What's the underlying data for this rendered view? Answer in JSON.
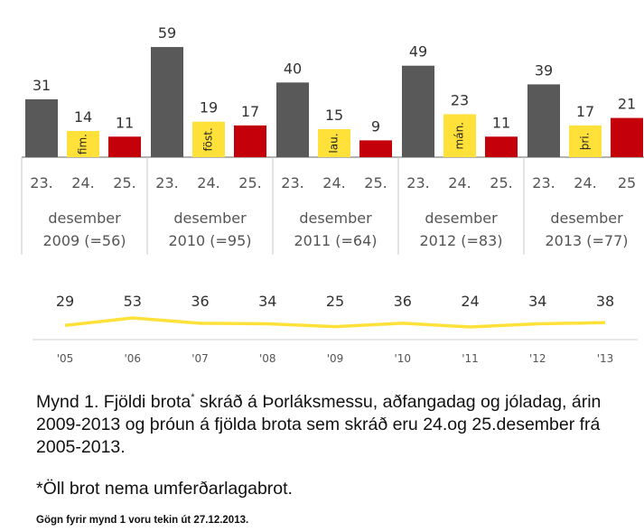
{
  "chart_data": [
    {
      "type": "bar",
      "groups": [
        {
          "label_line1": "desember",
          "label_line2": "2009 (=56)",
          "bars": [
            {
              "day": "23.",
              "value": 31,
              "weekday": ""
            },
            {
              "day": "24.",
              "value": 14,
              "weekday": "fim."
            },
            {
              "day": "25.",
              "value": 11,
              "weekday": ""
            }
          ]
        },
        {
          "label_line1": "desember",
          "label_line2": "2010 (=95)",
          "bars": [
            {
              "day": "23.",
              "value": 59,
              "weekday": ""
            },
            {
              "day": "24.",
              "value": 19,
              "weekday": "föst."
            },
            {
              "day": "25.",
              "value": 17,
              "weekday": ""
            }
          ]
        },
        {
          "label_line1": "desember",
          "label_line2": "2011 (=64)",
          "bars": [
            {
              "day": "23.",
              "value": 40,
              "weekday": ""
            },
            {
              "day": "24.",
              "value": 15,
              "weekday": "lau."
            },
            {
              "day": "25.",
              "value": 9,
              "weekday": ""
            }
          ]
        },
        {
          "label_line1": "desember",
          "label_line2": "2012 (=83)",
          "bars": [
            {
              "day": "23.",
              "value": 49,
              "weekday": ""
            },
            {
              "day": "24.",
              "value": 23,
              "weekday": "mán."
            },
            {
              "day": "25.",
              "value": 11,
              "weekday": ""
            }
          ]
        },
        {
          "label_line1": "desember",
          "label_line2": "2013 (=77)",
          "bars": [
            {
              "day": "23.",
              "value": 39,
              "weekday": ""
            },
            {
              "day": "24.",
              "value": 17,
              "weekday": "þri."
            },
            {
              "day": "25",
              "value": 21,
              "weekday": ""
            }
          ]
        }
      ],
      "colors": {
        "23.": "#595959",
        "24.": "#ffe13a",
        "25.": "#c4000b"
      },
      "ylim": [
        0,
        60
      ]
    },
    {
      "type": "line",
      "x": [
        "'05",
        "'06",
        "'07",
        "'08",
        "'09",
        "'10",
        "'11",
        "'12",
        "'13"
      ],
      "values": [
        29,
        53,
        36,
        34,
        25,
        36,
        24,
        34,
        38
      ],
      "line_color": "#ffe13a",
      "ylim": [
        0,
        60
      ]
    }
  ],
  "caption": {
    "part1": "Mynd 1. Fjöldi brota",
    "star": "*",
    "part2": " skráð á Þorláksmessu, aðfangadag og jóladag, árin 2009-2013 og þróun á fjölda brota sem skráð eru 24.og 25.desember frá 2005-2013."
  },
  "footnote": "*Öll brot nema umferðarlagabrot.",
  "source": "Gögn fyrir mynd 1 voru tekin út 27.12.2013."
}
